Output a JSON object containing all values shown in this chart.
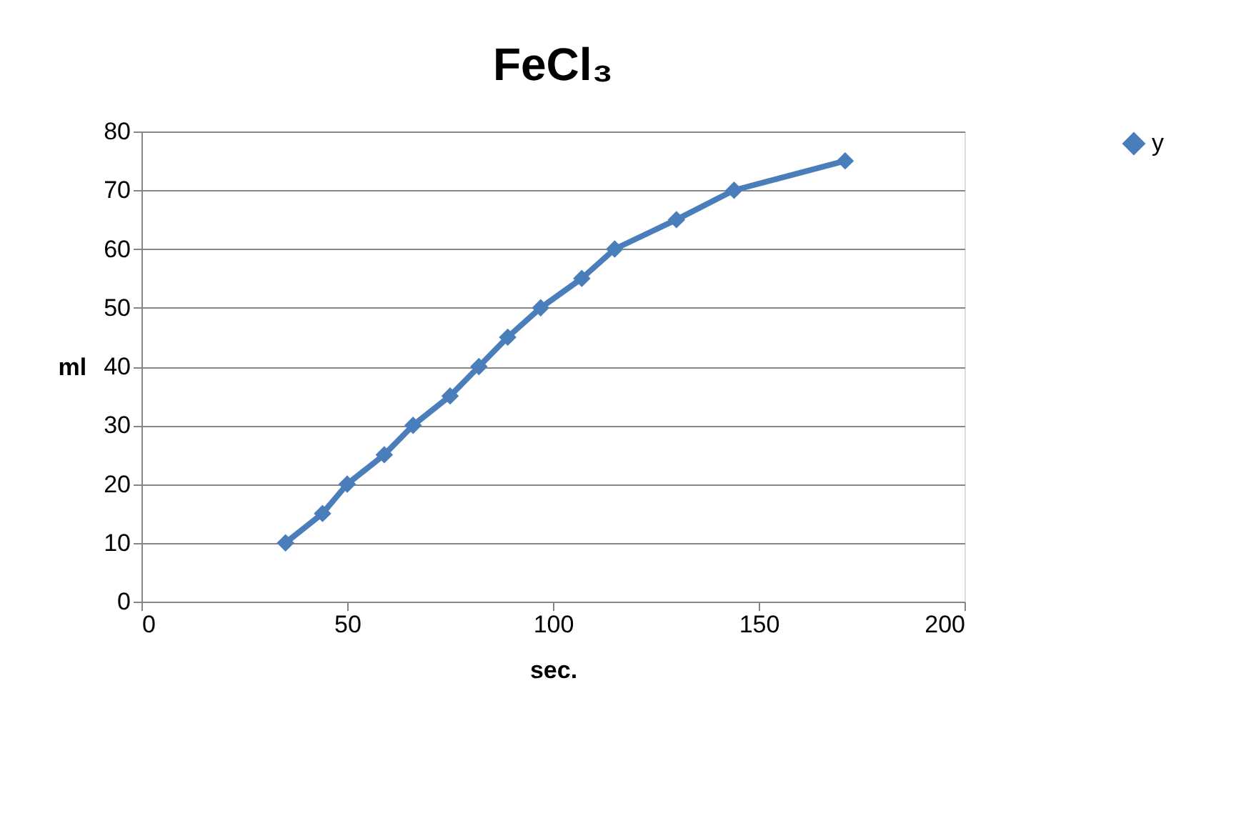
{
  "chart_data": {
    "type": "line",
    "title": "FeCl₃",
    "xlabel": "sec.",
    "ylabel": "ml",
    "x": [
      35,
      44,
      50,
      59,
      66,
      75,
      82,
      89,
      97,
      107,
      115,
      130,
      144,
      171
    ],
    "series": [
      {
        "name": "y",
        "color": "#4a7ebb",
        "values": [
          10,
          15,
          20,
          25,
          30,
          35,
          40,
          45,
          50,
          55,
          60,
          65,
          70,
          75
        ]
      }
    ],
    "xlim": [
      0,
      200
    ],
    "xticks": [
      0,
      50,
      100,
      150,
      200
    ],
    "ylim": [
      0,
      80
    ],
    "yticks": [
      0,
      10,
      20,
      30,
      40,
      50,
      60,
      70,
      80
    ],
    "grid": "y",
    "legend": "right",
    "marker": "diamond",
    "line_style": "solid"
  }
}
